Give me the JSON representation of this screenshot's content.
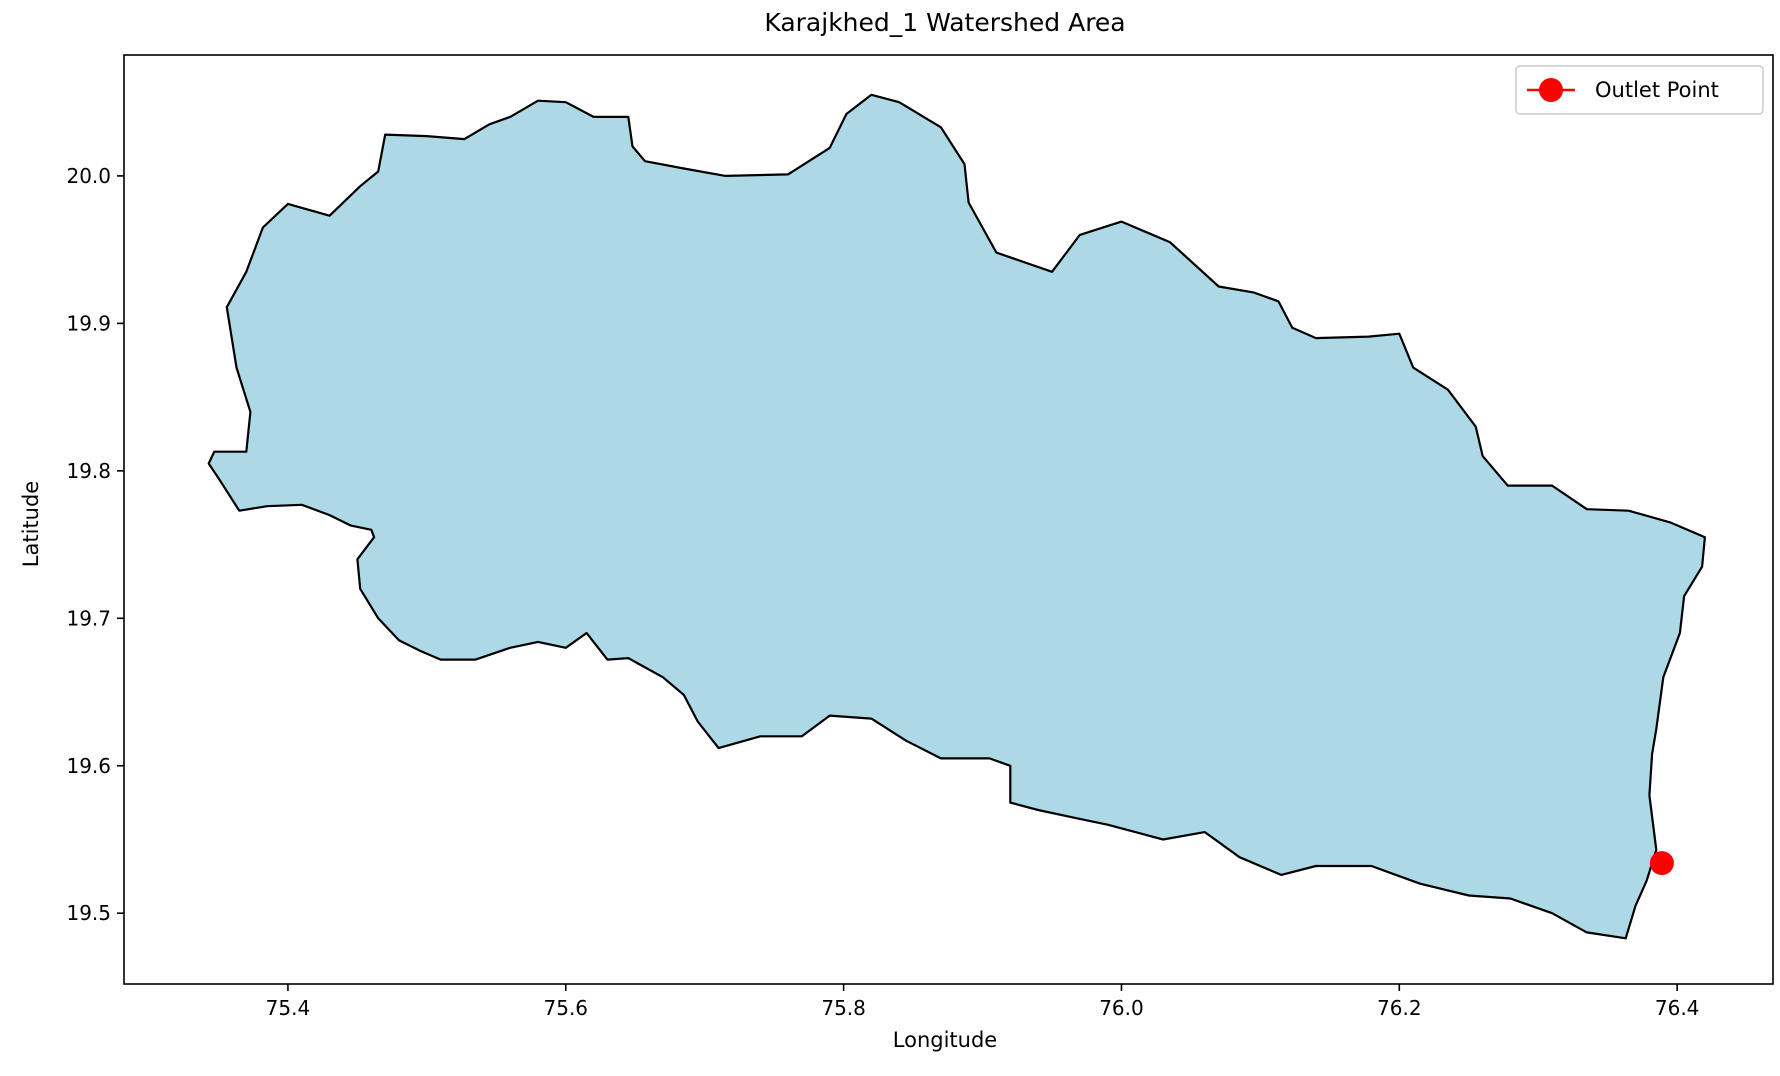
{
  "chart_data": {
    "type": "map",
    "title": "Karajkhed_1 Watershed Area",
    "xlabel": "Longitude",
    "ylabel": "Latitude",
    "xlim": [
      75.282,
      76.469
    ],
    "ylim": [
      19.452,
      20.082
    ],
    "x_ticks": [
      75.4,
      75.6,
      75.8,
      76.0,
      76.2,
      76.4
    ],
    "x_tick_labels": [
      "75.4",
      "75.6",
      "75.8",
      "76.0",
      "76.2",
      "76.4"
    ],
    "y_ticks": [
      19.5,
      19.6,
      19.7,
      19.8,
      19.9,
      20.0
    ],
    "y_tick_labels": [
      "19.5",
      "19.6",
      "19.7",
      "19.8",
      "19.9",
      "20.0"
    ],
    "grid": false,
    "legend": {
      "position": "top-right",
      "entries": [
        "Outlet Point"
      ]
    },
    "colors": {
      "fill": "#add8e6",
      "edge": "#000000",
      "outlet": "#ff0000"
    },
    "outlet_point": {
      "name": "Outlet Point",
      "lon": 76.389,
      "lat": 19.534
    },
    "watershed_boundary": [
      [
        75.35,
        19.795
      ],
      [
        75.343,
        19.805
      ],
      [
        75.347,
        19.813
      ],
      [
        75.37,
        19.813
      ],
      [
        75.373,
        19.84
      ],
      [
        75.363,
        19.87
      ],
      [
        75.356,
        19.911
      ],
      [
        75.37,
        19.935
      ],
      [
        75.382,
        19.965
      ],
      [
        75.4,
        19.981
      ],
      [
        75.43,
        19.973
      ],
      [
        75.452,
        19.993
      ],
      [
        75.465,
        20.003
      ],
      [
        75.47,
        20.028
      ],
      [
        75.5,
        20.027
      ],
      [
        75.527,
        20.025
      ],
      [
        75.545,
        20.035
      ],
      [
        75.56,
        20.04
      ],
      [
        75.58,
        20.051
      ],
      [
        75.6,
        20.05
      ],
      [
        75.62,
        20.04
      ],
      [
        75.645,
        20.04
      ],
      [
        75.648,
        20.02
      ],
      [
        75.657,
        20.01
      ],
      [
        75.685,
        20.005
      ],
      [
        75.715,
        20.0
      ],
      [
        75.76,
        20.001
      ],
      [
        75.79,
        20.019
      ],
      [
        75.802,
        20.042
      ],
      [
        75.82,
        20.055
      ],
      [
        75.84,
        20.05
      ],
      [
        75.87,
        20.033
      ],
      [
        75.887,
        20.008
      ],
      [
        75.89,
        19.982
      ],
      [
        75.91,
        19.948
      ],
      [
        75.95,
        19.935
      ],
      [
        75.97,
        19.96
      ],
      [
        76.0,
        19.969
      ],
      [
        76.035,
        19.955
      ],
      [
        76.07,
        19.925
      ],
      [
        76.095,
        19.921
      ],
      [
        76.113,
        19.915
      ],
      [
        76.123,
        19.897
      ],
      [
        76.14,
        19.89
      ],
      [
        76.178,
        19.891
      ],
      [
        76.2,
        19.893
      ],
      [
        76.21,
        19.87
      ],
      [
        76.235,
        19.855
      ],
      [
        76.255,
        19.83
      ],
      [
        76.26,
        19.81
      ],
      [
        76.278,
        19.79
      ],
      [
        76.31,
        19.79
      ],
      [
        76.335,
        19.774
      ],
      [
        76.365,
        19.773
      ],
      [
        76.395,
        19.765
      ],
      [
        76.42,
        19.755
      ],
      [
        76.418,
        19.735
      ],
      [
        76.405,
        19.715
      ],
      [
        76.402,
        19.69
      ],
      [
        76.39,
        19.66
      ],
      [
        76.385,
        19.625
      ],
      [
        76.382,
        19.608
      ],
      [
        76.38,
        19.58
      ],
      [
        76.385,
        19.543
      ],
      [
        76.378,
        19.522
      ],
      [
        76.37,
        19.505
      ],
      [
        76.363,
        19.483
      ],
      [
        76.335,
        19.487
      ],
      [
        76.31,
        19.5
      ],
      [
        76.28,
        19.51
      ],
      [
        76.25,
        19.512
      ],
      [
        76.215,
        19.52
      ],
      [
        76.18,
        19.532
      ],
      [
        76.14,
        19.532
      ],
      [
        76.115,
        19.526
      ],
      [
        76.085,
        19.538
      ],
      [
        76.06,
        19.555
      ],
      [
        76.03,
        19.55
      ],
      [
        75.99,
        19.56
      ],
      [
        75.965,
        19.565
      ],
      [
        75.94,
        19.57
      ],
      [
        75.92,
        19.575
      ],
      [
        75.92,
        19.6
      ],
      [
        75.905,
        19.605
      ],
      [
        75.87,
        19.605
      ],
      [
        75.845,
        19.617
      ],
      [
        75.82,
        19.632
      ],
      [
        75.79,
        19.634
      ],
      [
        75.77,
        19.62
      ],
      [
        75.74,
        19.62
      ],
      [
        75.71,
        19.612
      ],
      [
        75.695,
        19.63
      ],
      [
        75.685,
        19.648
      ],
      [
        75.67,
        19.66
      ],
      [
        75.645,
        19.673
      ],
      [
        75.63,
        19.672
      ],
      [
        75.615,
        19.69
      ],
      [
        75.6,
        19.68
      ],
      [
        75.58,
        19.684
      ],
      [
        75.56,
        19.68
      ],
      [
        75.535,
        19.672
      ],
      [
        75.51,
        19.672
      ],
      [
        75.495,
        19.678
      ],
      [
        75.48,
        19.685
      ],
      [
        75.465,
        19.7
      ],
      [
        75.452,
        19.72
      ],
      [
        75.45,
        19.74
      ],
      [
        75.462,
        19.755
      ],
      [
        75.46,
        19.76
      ],
      [
        75.445,
        19.763
      ],
      [
        75.43,
        19.77
      ],
      [
        75.41,
        19.777
      ],
      [
        75.385,
        19.776
      ],
      [
        75.365,
        19.773
      ],
      [
        75.35,
        19.795
      ]
    ]
  }
}
